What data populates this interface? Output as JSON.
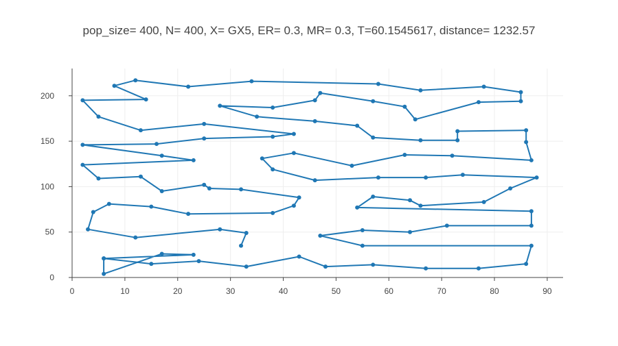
{
  "colors": {
    "series": "#1f77b4",
    "text": "#444444",
    "grid": "#eeeeee",
    "axis": "#444444"
  },
  "chart_data": {
    "type": "line",
    "mode": "lines+markers",
    "title": "pop_size= 400, N= 400, X= GX5, ER= 0.3, MR= 0.3, T=60.1545617, distance= 1232.57",
    "xlabel": "",
    "ylabel": "",
    "xlim": [
      0,
      93
    ],
    "ylim": [
      0,
      230
    ],
    "xticks": [
      0,
      10,
      20,
      30,
      40,
      50,
      60,
      70,
      80,
      90
    ],
    "yticks": [
      0,
      50,
      100,
      150,
      200
    ],
    "grid": true,
    "legend": "none",
    "series": [
      {
        "x": [
          6,
          6,
          17,
          23,
          6,
          15,
          24,
          33,
          43,
          48,
          57,
          67,
          77,
          86,
          87,
          55,
          47,
          55,
          64,
          71,
          87,
          87,
          54,
          57,
          64,
          66,
          78,
          83,
          88,
          74,
          67,
          58,
          46,
          38,
          36,
          42,
          53,
          63,
          72,
          87,
          86,
          86,
          73,
          73,
          66,
          57,
          54,
          46,
          35,
          28,
          38,
          46,
          47,
          57,
          63,
          65,
          77,
          85,
          85,
          78,
          66,
          58,
          34,
          22,
          12,
          8,
          14,
          2,
          5,
          13,
          25,
          42,
          38,
          25,
          16,
          2,
          17,
          23,
          2,
          5,
          13,
          17,
          25,
          26,
          32,
          43,
          42,
          38,
          22,
          15,
          7,
          4,
          3,
          12,
          28,
          33,
          32
        ],
        "y": [
          21,
          4,
          26,
          25,
          21,
          15,
          18,
          12,
          23,
          12,
          14,
          10,
          10,
          15,
          35,
          35,
          46,
          52,
          50,
          57,
          57,
          73,
          77,
          89,
          85,
          79,
          83,
          98,
          110,
          113,
          110,
          110,
          107,
          119,
          131,
          137,
          123,
          135,
          134,
          129,
          149,
          162,
          161,
          151,
          151,
          154,
          167,
          172,
          177,
          189,
          187,
          195,
          203,
          194,
          188,
          174,
          193,
          194,
          204,
          210,
          206,
          213,
          216,
          210,
          217,
          211,
          196,
          195,
          177,
          162,
          169,
          158,
          155,
          153,
          147,
          146,
          134,
          129,
          124,
          109,
          111,
          95,
          102,
          98,
          97,
          88,
          79,
          71,
          70,
          78,
          81,
          72,
          53,
          44,
          53,
          49,
          35
        ]
      }
    ]
  }
}
